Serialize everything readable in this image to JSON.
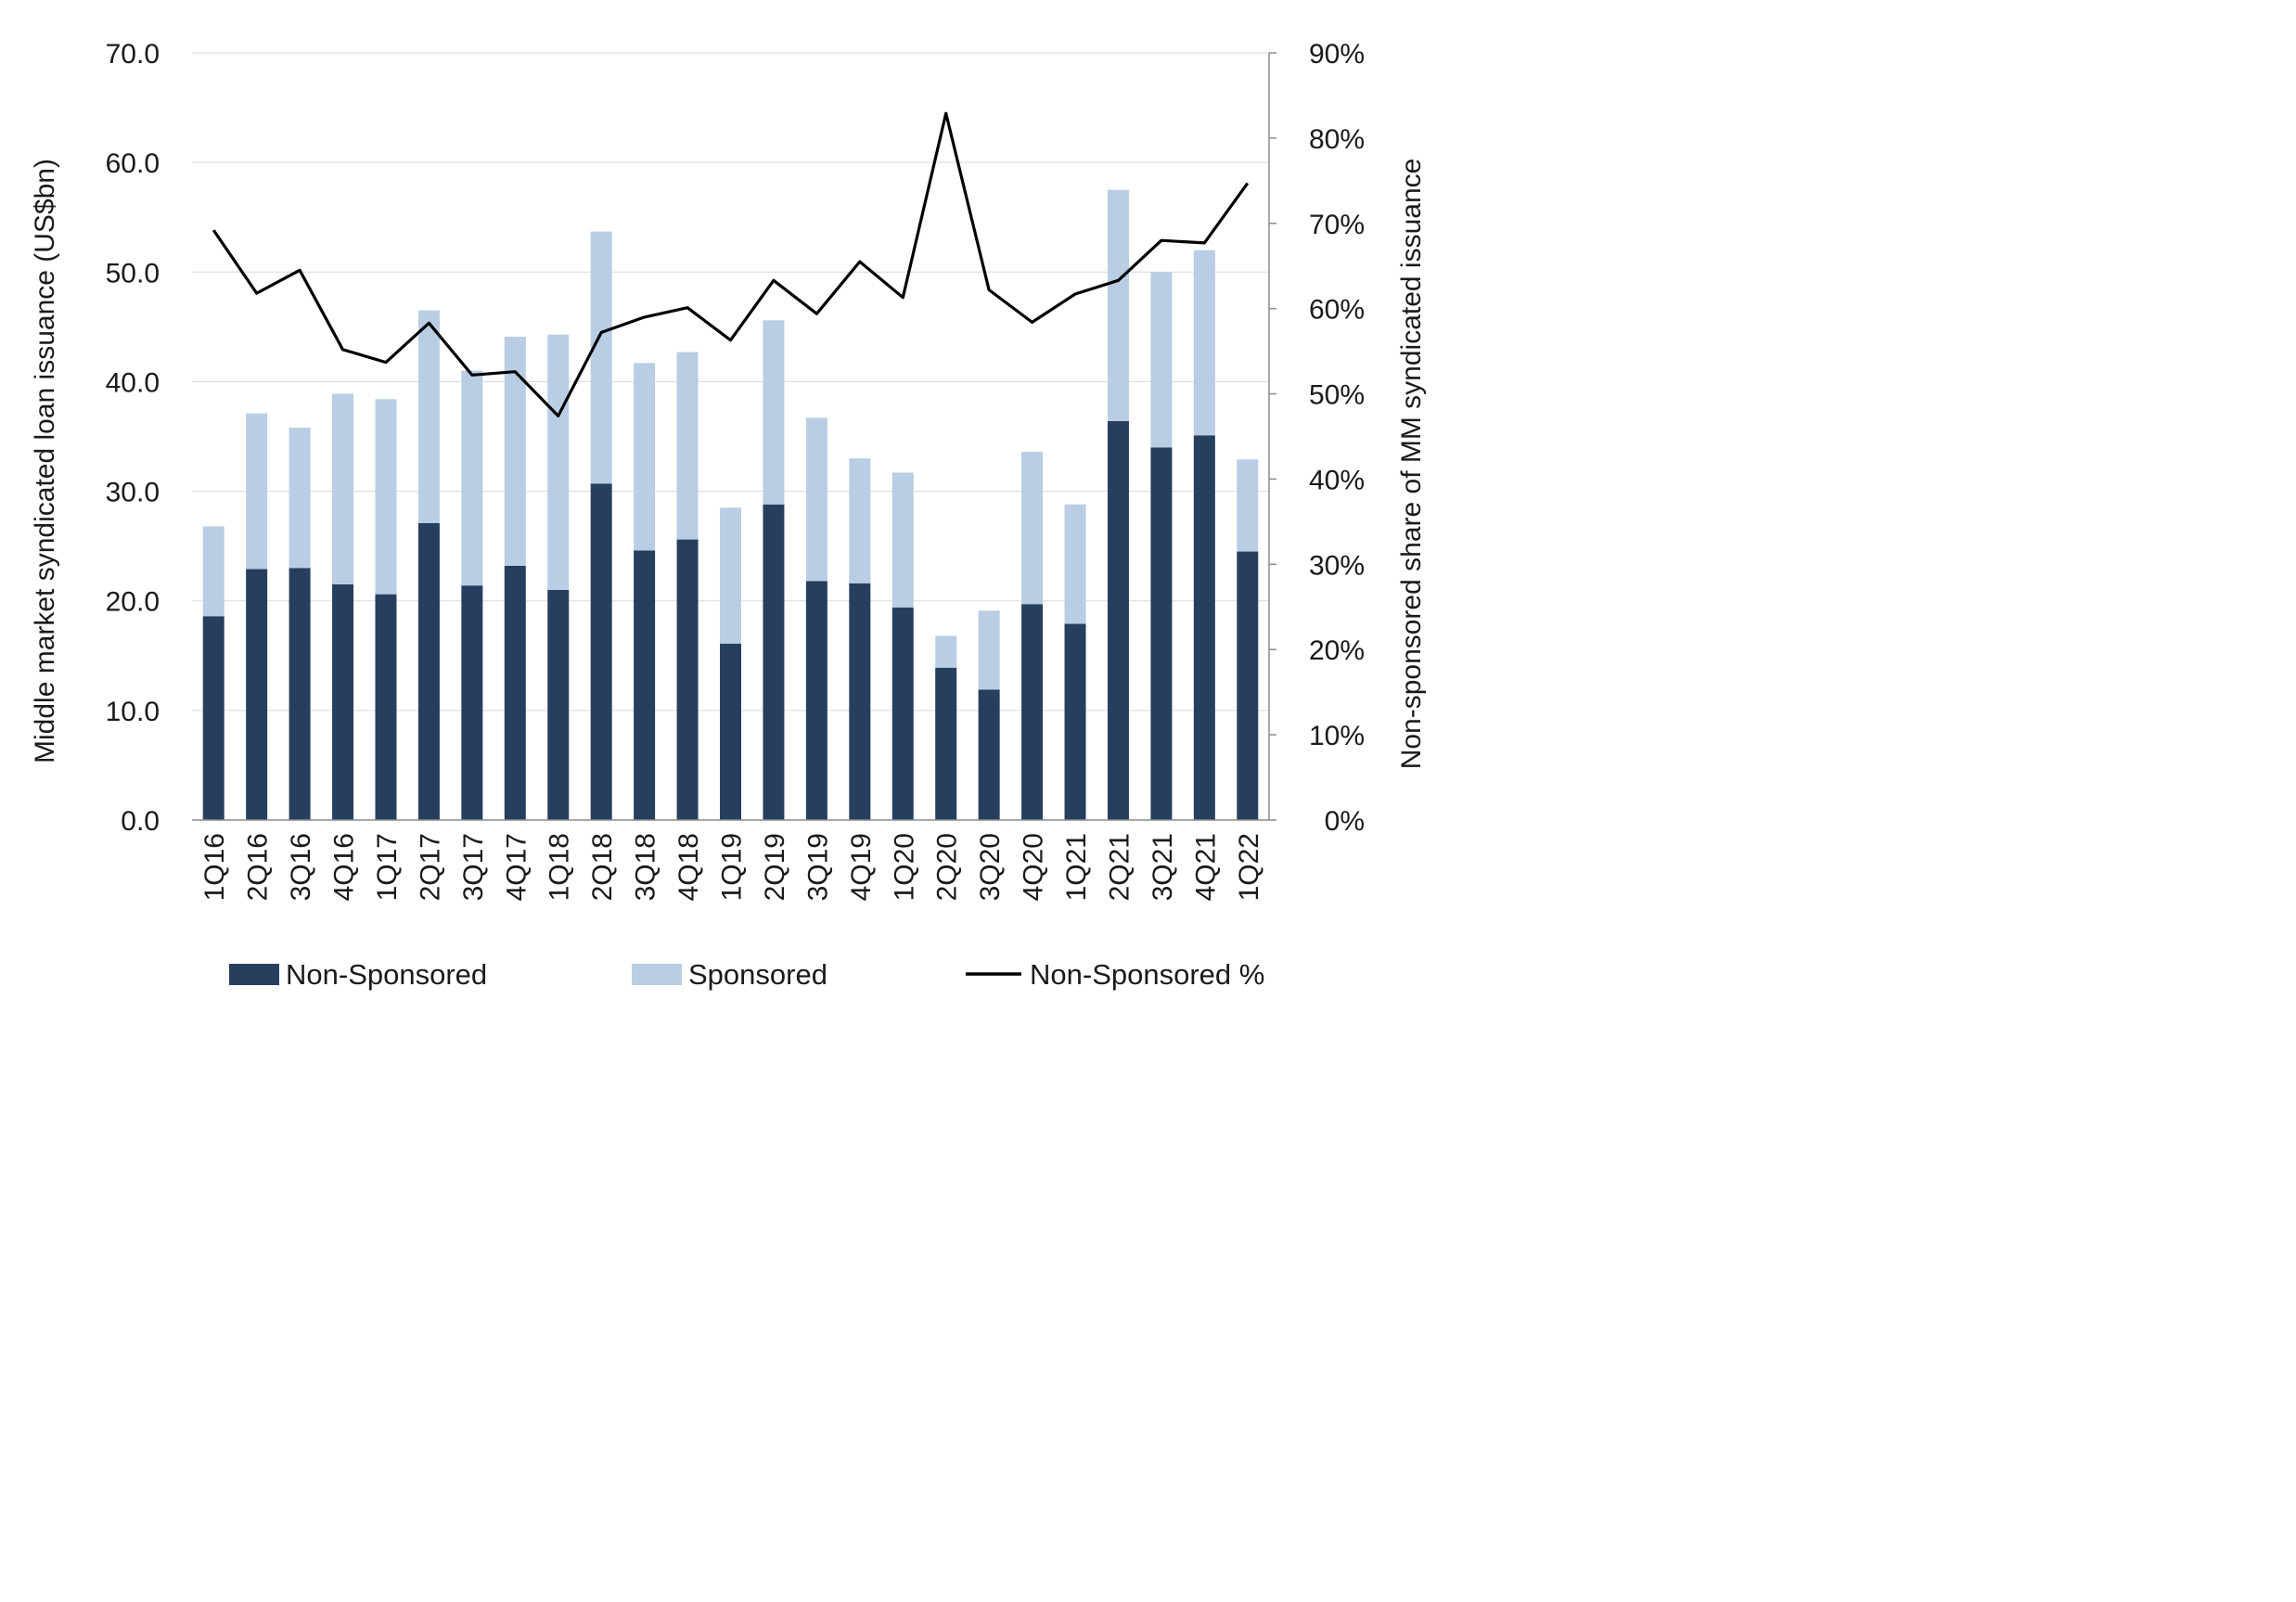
{
  "chart_data": {
    "type": "bar",
    "stacked": true,
    "categories": [
      "1Q16",
      "2Q16",
      "3Q16",
      "4Q16",
      "1Q17",
      "2Q17",
      "3Q17",
      "4Q17",
      "1Q18",
      "2Q18",
      "3Q18",
      "4Q18",
      "1Q19",
      "2Q19",
      "3Q19",
      "4Q19",
      "1Q20",
      "2Q20",
      "3Q20",
      "4Q20",
      "1Q21",
      "2Q21",
      "3Q21",
      "4Q21",
      "1Q22"
    ],
    "series": [
      {
        "name": "Non-Sponsored",
        "type": "bar",
        "axis": "left",
        "color": "#273f5f",
        "values": [
          18.6,
          22.9,
          23.0,
          21.5,
          20.6,
          27.1,
          21.4,
          23.2,
          21.0,
          30.7,
          24.6,
          25.6,
          16.1,
          28.8,
          21.8,
          21.6,
          19.4,
          13.9,
          11.9,
          19.7,
          17.9,
          36.4,
          34.0,
          35.1,
          24.5
        ]
      },
      {
        "name": "Sponsored",
        "type": "bar",
        "axis": "left",
        "color": "#b9cde4",
        "values": [
          8.2,
          14.2,
          12.8,
          17.4,
          17.8,
          19.4,
          19.6,
          20.9,
          23.3,
          23.0,
          17.1,
          17.1,
          12.4,
          16.8,
          14.9,
          11.4,
          12.3,
          2.9,
          7.2,
          13.9,
          10.9,
          21.1,
          16.0,
          16.9,
          8.4
        ]
      },
      {
        "name": "Non-Sponsored %",
        "type": "line",
        "axis": "right",
        "color": "#000000",
        "values": [
          0.692,
          0.618,
          0.645,
          0.552,
          0.537,
          0.583,
          0.522,
          0.526,
          0.474,
          0.572,
          0.59,
          0.601,
          0.563,
          0.633,
          0.594,
          0.655,
          0.613,
          0.829,
          0.622,
          0.584,
          0.617,
          0.633,
          0.68,
          0.677,
          0.747
        ]
      }
    ],
    "left_axis": {
      "label": "Middle market syndicated loan issuance (US$bn)",
      "ylim": [
        0,
        70
      ],
      "ticks": [
        "0.0",
        "10.0",
        "20.0",
        "30.0",
        "40.0",
        "50.0",
        "60.0",
        "70.0"
      ],
      "tick_values": [
        0,
        10,
        20,
        30,
        40,
        50,
        60,
        70
      ]
    },
    "right_axis": {
      "label": "Non-sponsored share of MM syndicated issuance",
      "ylim": [
        0,
        0.9
      ],
      "ticks": [
        "0%",
        "10%",
        "20%",
        "30%",
        "40%",
        "50%",
        "60%",
        "70%",
        "80%",
        "90%"
      ],
      "tick_values": [
        0,
        0.1,
        0.2,
        0.3,
        0.4,
        0.5,
        0.6,
        0.7,
        0.8,
        0.9
      ]
    },
    "grid": true,
    "legend_position": "bottom",
    "legend": [
      {
        "label": "Non-Sponsored",
        "kind": "bar",
        "color": "#273f5f"
      },
      {
        "label": "Sponsored",
        "kind": "bar",
        "color": "#b9cde4"
      },
      {
        "label": "Non-Sponsored %",
        "kind": "line",
        "color": "#000000"
      }
    ]
  }
}
